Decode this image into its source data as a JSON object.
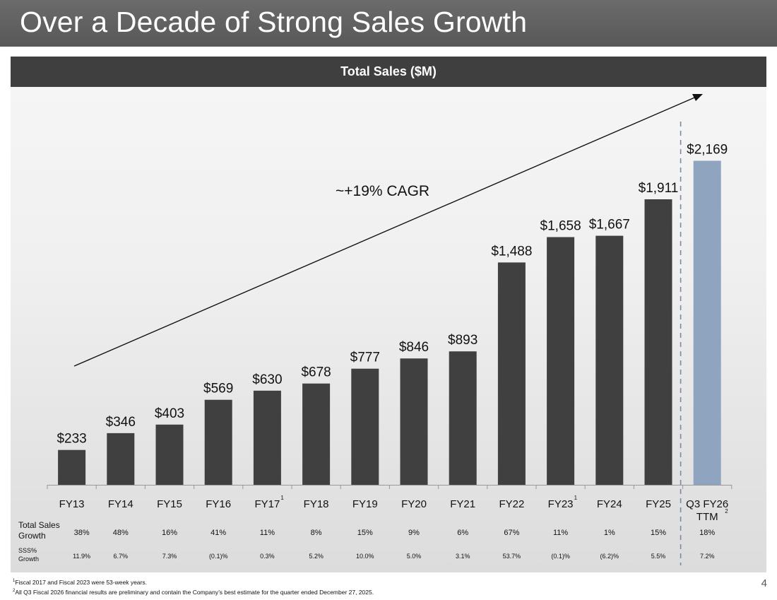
{
  "slide": {
    "title": "Over a Decade of Strong Sales Growth",
    "page_number": "4"
  },
  "chart_data": {
    "type": "bar",
    "title": "Total Sales ($M)",
    "categories": [
      "FY13",
      "FY14",
      "FY15",
      "FY16",
      "FY17",
      "FY18",
      "FY19",
      "FY20",
      "FY21",
      "FY22",
      "FY23",
      "FY24",
      "FY25",
      "Q3 FY26 TTM"
    ],
    "category_lines": [
      [
        "FY13"
      ],
      [
        "FY14"
      ],
      [
        "FY15"
      ],
      [
        "FY16"
      ],
      [
        "FY17"
      ],
      [
        "FY18"
      ],
      [
        "FY19"
      ],
      [
        "FY20"
      ],
      [
        "FY21"
      ],
      [
        "FY22"
      ],
      [
        "FY23"
      ],
      [
        "FY24"
      ],
      [
        "FY25"
      ],
      [
        "Q3 FY26",
        "TTM"
      ]
    ],
    "category_footnotes": [
      "",
      "",
      "",
      "",
      "1",
      "",
      "",
      "",
      "",
      "",
      "1",
      "",
      "",
      "2"
    ],
    "values": [
      233,
      346,
      403,
      569,
      630,
      678,
      777,
      846,
      893,
      1488,
      1658,
      1667,
      1911,
      2169
    ],
    "value_labels": [
      "$233",
      "$346",
      "$403",
      "$569",
      "$630",
      "$678",
      "$777",
      "$846",
      "$893",
      "$1,488",
      "$1,658",
      "$1,667",
      "$1,911",
      "$2,169"
    ],
    "ylim": [
      0,
      2500
    ],
    "colors": {
      "bar": "#404040",
      "highlight_bar": "#8fa4bf"
    },
    "highlight_index": 13,
    "grid": false,
    "annotation": "~+19% CAGR",
    "trend_arrow": {
      "from_category": "FY13",
      "to_category": "Q3 FY26 TTM"
    },
    "divider_before": "Q3 FY26 TTM"
  },
  "table_rows": [
    {
      "label_lines": [
        "Total Sales",
        "Growth"
      ],
      "values": [
        "38%",
        "48%",
        "16%",
        "41%",
        "11%",
        "8%",
        "15%",
        "9%",
        "6%",
        "67%",
        "11%",
        "1%",
        "15%",
        "18%"
      ]
    },
    {
      "label_lines": [
        "SSS%",
        "Growth"
      ],
      "values": [
        "11.9%",
        "6.7%",
        "7.3%",
        "(0.1)%",
        "0.3%",
        "5.2%",
        "10.0%",
        "5.0%",
        "3.1%",
        "53.7%",
        "(0.1)%",
        "(6.2)%",
        "5.5%",
        "7.2%"
      ]
    }
  ],
  "footnotes": [
    {
      "mark": "1",
      "text": "Fiscal 2017 and Fiscal 2023 were 53-week years."
    },
    {
      "mark": "2",
      "text": "All Q3 Fiscal 2026 financial results are preliminary and contain the Company’s best estimate for the quarter ended December 27, 2025."
    }
  ]
}
